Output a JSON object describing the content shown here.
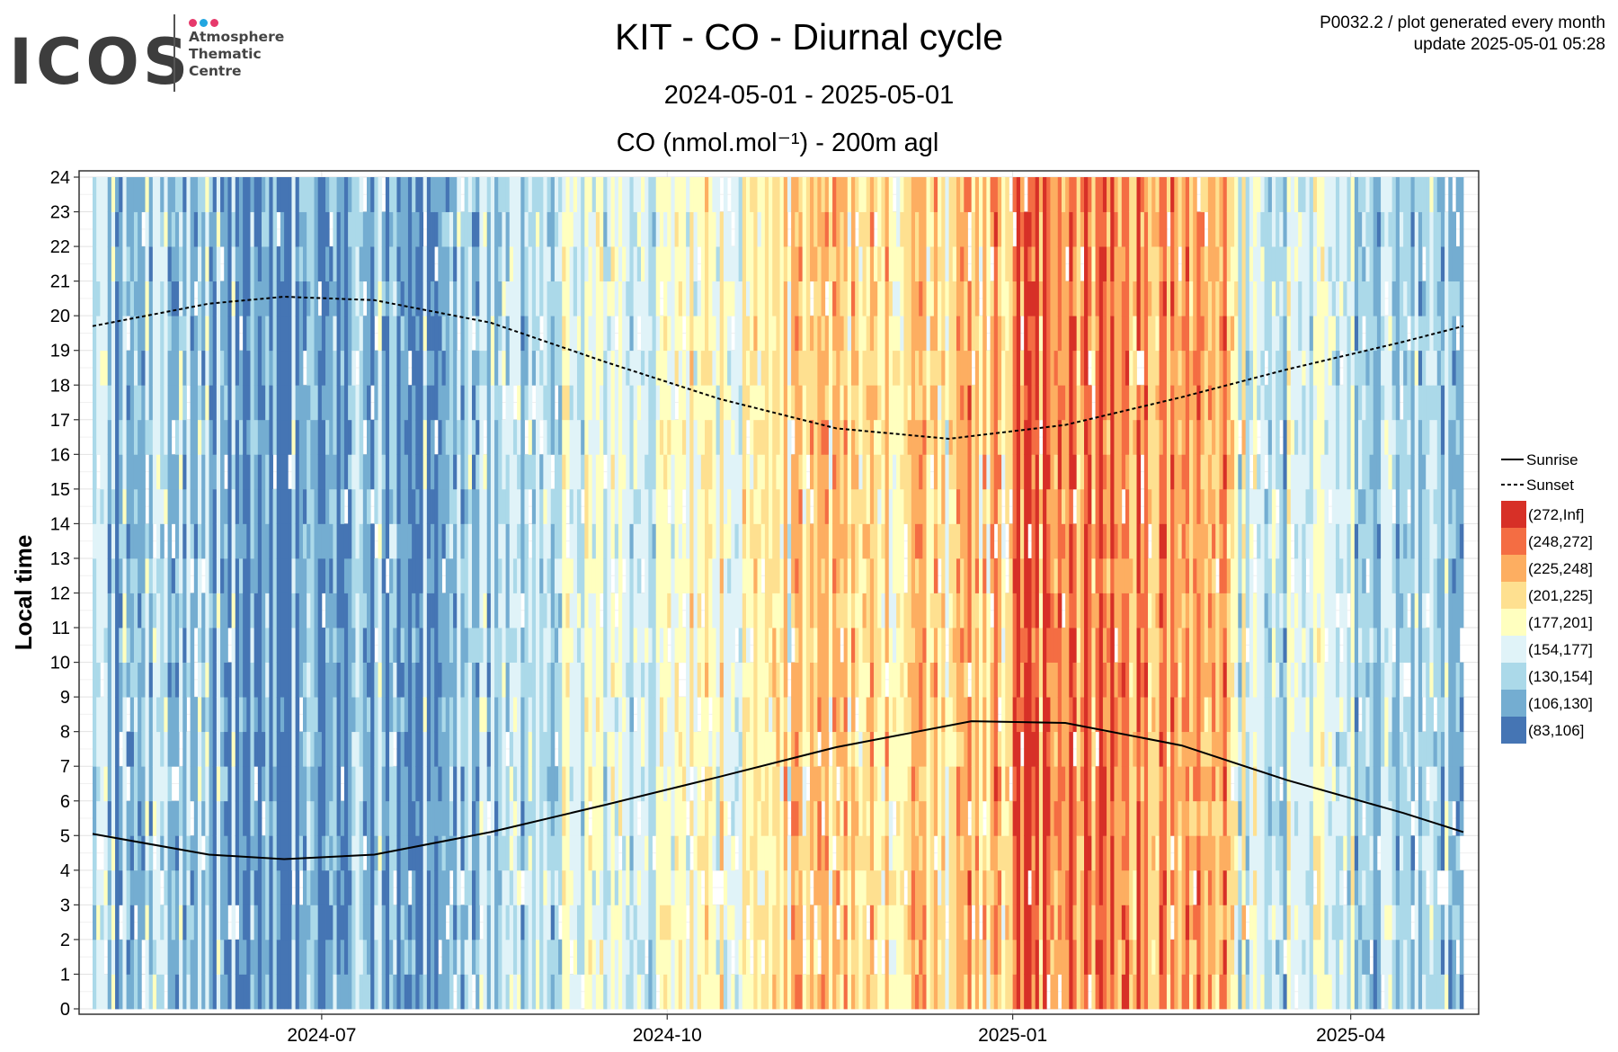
{
  "logo": {
    "wordmark": "ICOS",
    "lines": [
      "Atmosphere",
      "Thematic",
      "Centre"
    ],
    "dot_colors": [
      "#e6396b",
      "#22a6e0",
      "#e6396b"
    ]
  },
  "header": {
    "title": "KIT - CO - Diurnal cycle",
    "date_range": "2024-05-01 - 2025-05-01",
    "plot_id": "P0032.2 / plot generated every month",
    "update": "update  2025-05-01 05:28"
  },
  "chart_data": {
    "type": "heatmap",
    "title": "CO (nmol.mol⁻¹) - 200m agl",
    "ylabel": "Local time",
    "xlabel": "",
    "x_start": "2024-05-01",
    "x_end": "2025-05-01",
    "x_ticks": [
      "2024-07",
      "2024-10",
      "2025-01",
      "2025-04"
    ],
    "y_range": [
      0,
      24
    ],
    "y_ticks": [
      0,
      1,
      2,
      3,
      4,
      5,
      6,
      7,
      8,
      9,
      10,
      11,
      12,
      13,
      14,
      15,
      16,
      17,
      18,
      19,
      20,
      21,
      22,
      23,
      24
    ],
    "grid": true,
    "legend_position": "right",
    "bins": [
      {
        "label": "(272,Inf]",
        "color": "#d73027"
      },
      {
        "label": "(248,272]",
        "color": "#f46d43"
      },
      {
        "label": "(225,248]",
        "color": "#fdae61"
      },
      {
        "label": "(201,225]",
        "color": "#fee090"
      },
      {
        "label": "(177,201]",
        "color": "#ffffbf"
      },
      {
        "label": "(154,177]",
        "color": "#e0f3f8"
      },
      {
        "label": "(130,154]",
        "color": "#abd9e9"
      },
      {
        "label": "(106,130]",
        "color": "#74add1"
      },
      {
        "label": "(83,106]",
        "color": "#4575b4"
      }
    ],
    "monthly_typical_bin": [
      {
        "month": "2024-05",
        "bin": "(130,154]"
      },
      {
        "month": "2024-06",
        "bin": "(106,130]"
      },
      {
        "month": "2024-07",
        "bin": "(106,130]"
      },
      {
        "month": "2024-08",
        "bin": "(130,154]"
      },
      {
        "month": "2024-09",
        "bin": "(154,177]"
      },
      {
        "month": "2024-10",
        "bin": "(177,201]"
      },
      {
        "month": "2024-11",
        "bin": "(201,225]"
      },
      {
        "month": "2024-12",
        "bin": "(201,225]"
      },
      {
        "month": "2025-01",
        "bin": "(248,272]"
      },
      {
        "month": "2025-02",
        "bin": "(225,248]"
      },
      {
        "month": "2025-03",
        "bin": "(154,177]"
      },
      {
        "month": "2025-04",
        "bin": "(130,154]"
      }
    ],
    "series": [
      {
        "name": "Sunrise",
        "line_style": "solid",
        "x": [
          "2024-05-01",
          "2024-06-01",
          "2024-06-21",
          "2024-07-15",
          "2024-08-15",
          "2024-09-15",
          "2024-10-15",
          "2024-11-15",
          "2024-12-21",
          "2025-01-15",
          "2025-02-15",
          "2025-03-15",
          "2025-04-15",
          "2025-05-01"
        ],
        "y": [
          5.05,
          4.45,
          4.32,
          4.45,
          5.1,
          5.9,
          6.7,
          7.55,
          8.3,
          8.25,
          7.6,
          6.6,
          5.65,
          5.1
        ]
      },
      {
        "name": "Sunset",
        "line_style": "dashed",
        "x": [
          "2024-05-01",
          "2024-06-01",
          "2024-06-21",
          "2024-07-15",
          "2024-08-15",
          "2024-09-15",
          "2024-10-15",
          "2024-11-15",
          "2024-12-15",
          "2025-01-15",
          "2025-02-15",
          "2025-03-15",
          "2025-04-15",
          "2025-05-01"
        ],
        "y": [
          19.7,
          20.35,
          20.55,
          20.45,
          19.8,
          18.65,
          17.6,
          16.75,
          16.45,
          16.85,
          17.65,
          18.45,
          19.25,
          19.7
        ]
      }
    ]
  }
}
